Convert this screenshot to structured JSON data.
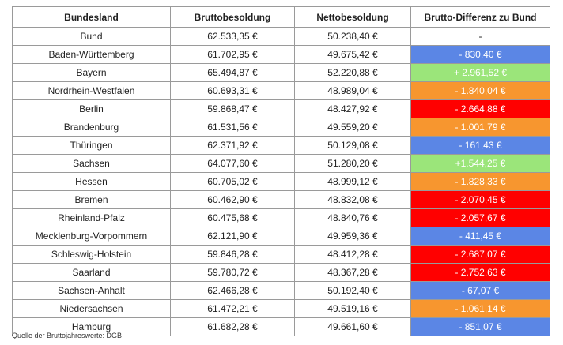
{
  "table": {
    "headers": [
      "Bundesland",
      "Bruttobesoldung",
      "Nettobesoldung",
      "Brutto-Differenz zu Bund"
    ],
    "rows": [
      {
        "land": "Bund",
        "brutto": "62.533,35 €",
        "netto": "50.238,40 €",
        "diff": "-",
        "color": "#ffffff"
      },
      {
        "land": "Baden-Württemberg",
        "brutto": "61.702,95 €",
        "netto": "49.675,42 €",
        "diff": "- 830,40 €",
        "color": "#5b86e5"
      },
      {
        "land": "Bayern",
        "brutto": "65.494,87 €",
        "netto": "52.220,88 €",
        "diff": "+ 2.961,52 €",
        "color": "#9be57a"
      },
      {
        "land": "Nordrhein-Westfalen",
        "brutto": "60.693,31 €",
        "netto": "48.989,04 €",
        "diff": "- 1.840,04 €",
        "color": "#f7962f"
      },
      {
        "land": "Berlin",
        "brutto": "59.868,47 €",
        "netto": "48.427,92 €",
        "diff": "- 2.664,88 €",
        "color": "#ff0000"
      },
      {
        "land": "Brandenburg",
        "brutto": "61.531,56 €",
        "netto": "49.559,20 €",
        "diff": "- 1.001,79 €",
        "color": "#f7962f"
      },
      {
        "land": "Thüringen",
        "brutto": "62.371,92 €",
        "netto": "50.129,08 €",
        "diff": "- 161,43 €",
        "color": "#5b86e5"
      },
      {
        "land": "Sachsen",
        "brutto": "64.077,60 €",
        "netto": "51.280,20 €",
        "diff": "+1.544,25 €",
        "color": "#9be57a"
      },
      {
        "land": "Hessen",
        "brutto": "60.705,02 €",
        "netto": "48.999,12 €",
        "diff": "- 1.828,33 €",
        "color": "#f7962f"
      },
      {
        "land": "Bremen",
        "brutto": "60.462,90 €",
        "netto": "48.832,08 €",
        "diff": "- 2.070,45 €",
        "color": "#ff0000"
      },
      {
        "land": "Rheinland-Pfalz",
        "brutto": "60.475,68 €",
        "netto": "48.840,76 €",
        "diff": "- 2.057,67 €",
        "color": "#ff0000"
      },
      {
        "land": "Mecklenburg-Vorpommern",
        "brutto": "62.121,90 €",
        "netto": "49.959,36 €",
        "diff": "- 411,45 €",
        "color": "#5b86e5"
      },
      {
        "land": "Schleswig-Holstein",
        "brutto": "59.846,28 €",
        "netto": "48.412,28 €",
        "diff": "- 2.687,07 €",
        "color": "#ff0000"
      },
      {
        "land": "Saarland",
        "brutto": "59.780,72 €",
        "netto": "48.367,28 €",
        "diff": "- 2.752,63 €",
        "color": "#ff0000"
      },
      {
        "land": "Sachsen-Anhalt",
        "brutto": "62.466,28 €",
        "netto": "50.192,40 €",
        "diff": "- 67,07 €",
        "color": "#5b86e5"
      },
      {
        "land": "Niedersachsen",
        "brutto": "61.472,21 €",
        "netto": "49.519,16 €",
        "diff": "- 1.061,14 €",
        "color": "#f7962f"
      },
      {
        "land": "Hamburg",
        "brutto": "61.682,28 €",
        "netto": "49.661,60 €",
        "diff": "- 851,07 €",
        "color": "#5b86e5"
      }
    ]
  },
  "source": "Quelle der Bruttojahreswerte: DGB"
}
